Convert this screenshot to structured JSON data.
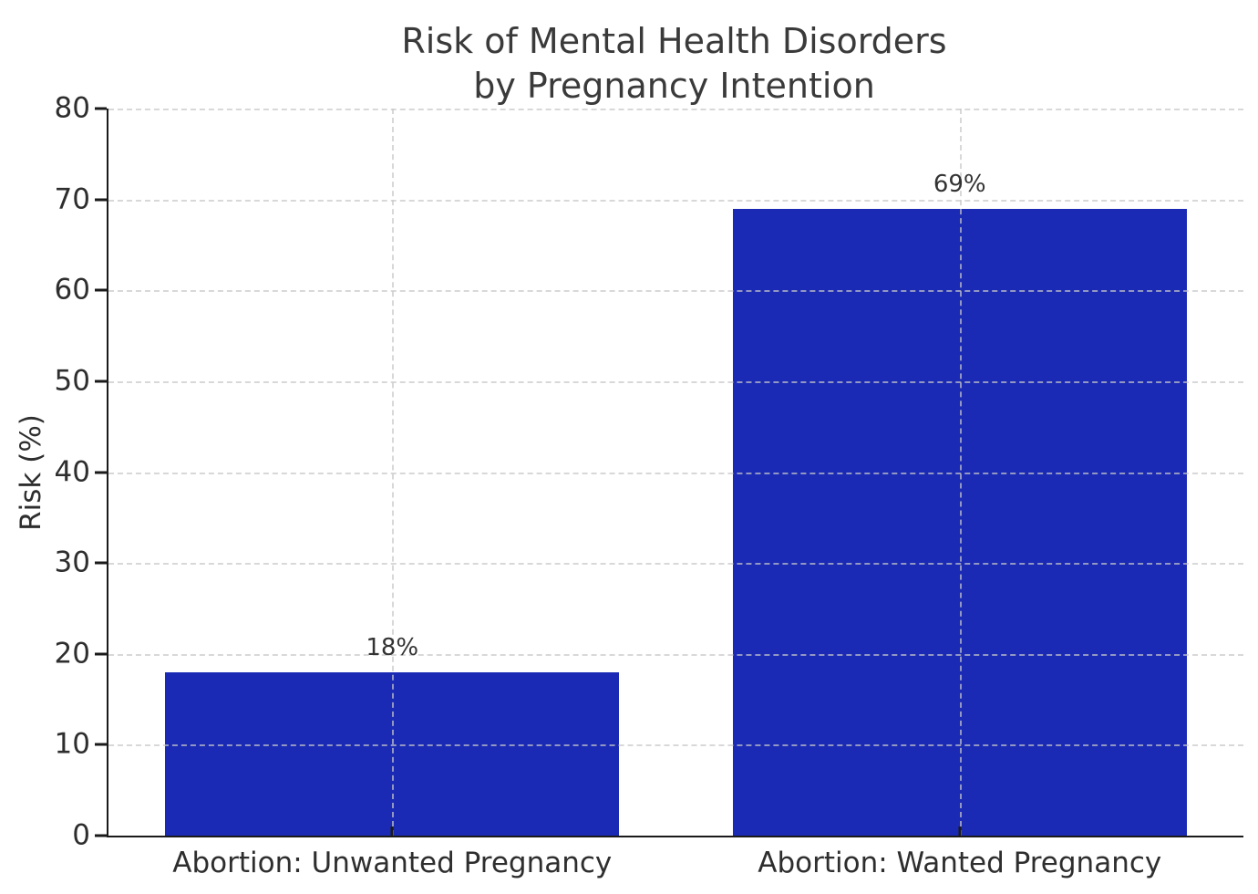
{
  "figure": {
    "background": "#ffffff",
    "title_color": "#3a3a3a",
    "text_color": "#2e2e2e",
    "spine_color": "#1a1a1a",
    "grid_color": "rgba(200,200,200,0.7)"
  },
  "chart_data": {
    "type": "bar",
    "title": "Risk of Mental Health Disorders\nby Pregnancy Intention",
    "categories": [
      "Abortion: Unwanted Pregnancy",
      "Abortion: Wanted Pregnancy"
    ],
    "values": [
      18,
      69
    ],
    "value_labels": [
      "18%",
      "69%"
    ],
    "xlabel": "",
    "ylabel": "Risk (%)",
    "ylim": [
      0,
      80
    ],
    "yticks": [
      0,
      10,
      20,
      30,
      40,
      50,
      60,
      70,
      80
    ],
    "bar_color": "#1a2ab5",
    "bar_width_fraction": 0.8,
    "grid": true,
    "grid_style": "dashed",
    "legend": null
  }
}
